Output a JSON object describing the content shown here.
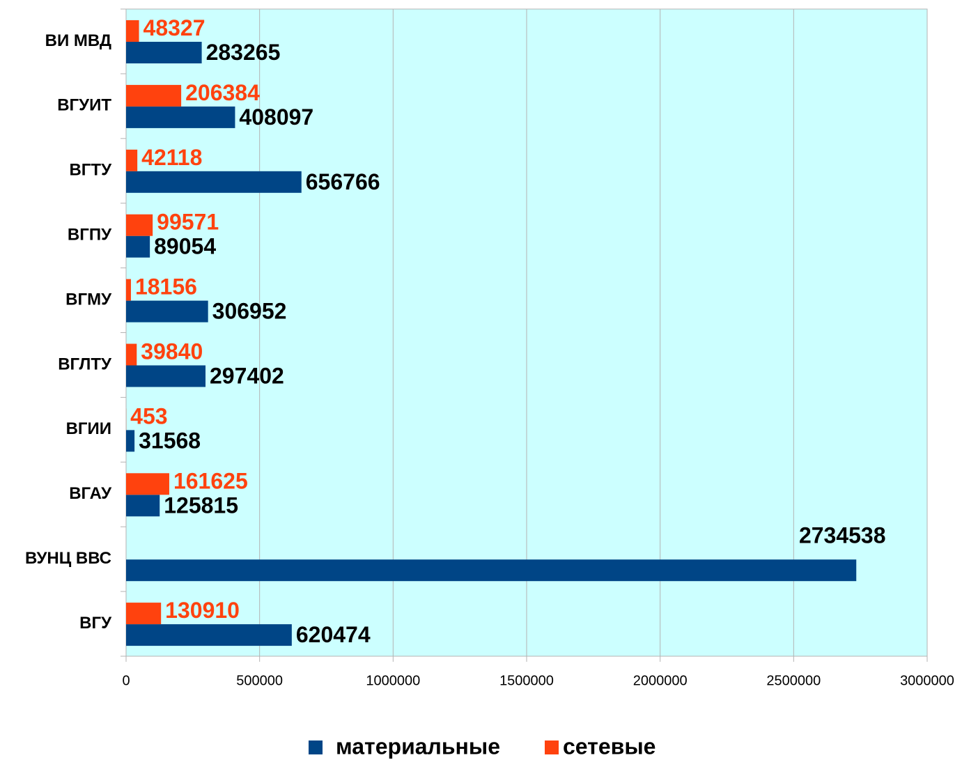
{
  "chart_data": {
    "type": "hbar",
    "categories": [
      "ВИ МВД",
      "ВГУИТ",
      "ВГТУ",
      "ВГПУ",
      "ВГМУ",
      "ВГЛТУ",
      "ВГИИ",
      "ВГАУ",
      "ВУНЦ ВВС",
      "ВГУ"
    ],
    "series": [
      {
        "name": "материальные",
        "color": "#004586",
        "values": [
          283265,
          408097,
          656766,
          89054,
          306952,
          297402,
          31568,
          125815,
          2734538,
          620474
        ]
      },
      {
        "name": "сетевые",
        "color": "#ff420e",
        "values": [
          48327,
          206384,
          42118,
          99571,
          18156,
          39840,
          453,
          161625,
          null,
          130910
        ]
      }
    ],
    "xlim": [
      0,
      3000000
    ],
    "xticks": [
      0,
      500000,
      1000000,
      1500000,
      2000000,
      2500000,
      3000000
    ],
    "grid": true,
    "legend": "bottom",
    "background": "#ccffff"
  }
}
